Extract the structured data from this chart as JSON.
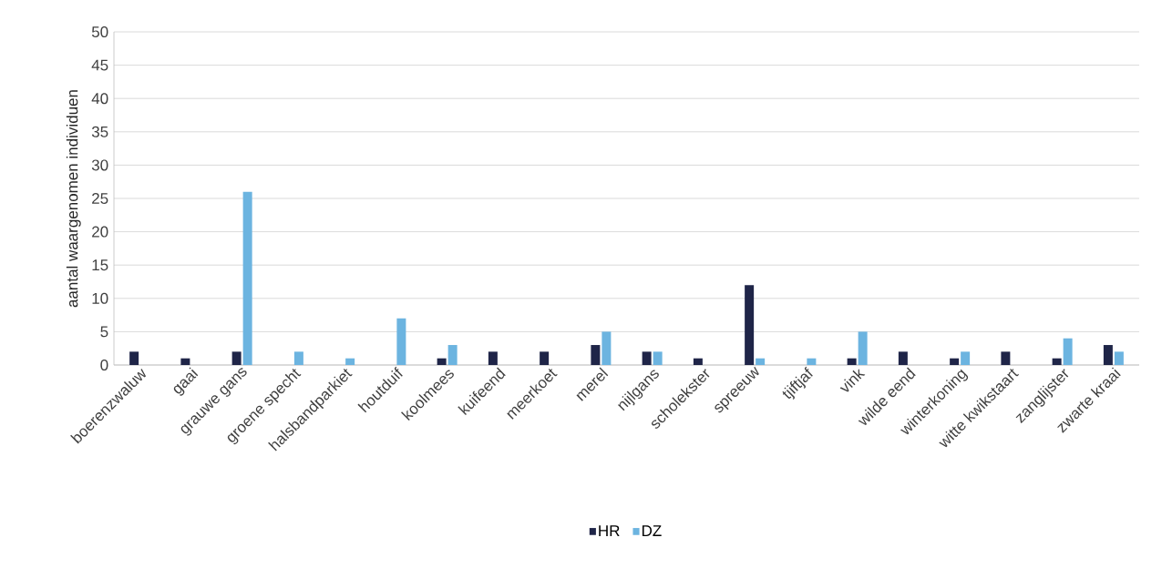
{
  "chart_data": {
    "type": "bar",
    "ylabel": "aantal waargenomen individuen",
    "categories": [
      "boerenzwaluw",
      "gaai",
      "grauwe gans",
      "groene specht",
      "halsbandparkiet",
      "houtduif",
      "koolmees",
      "kuifeend",
      "meerkoet",
      "merel",
      "nijlgans",
      "scholekster",
      "spreeuw",
      "tjiftjaf",
      "vink",
      "wilde eend",
      "winterkoning",
      "witte kwikstaart",
      "zanglijster",
      "zwarte kraai"
    ],
    "series": [
      {
        "name": "HR",
        "color": "#1f2548",
        "values": [
          2,
          1,
          2,
          null,
          null,
          null,
          1,
          2,
          2,
          3,
          2,
          1,
          12,
          null,
          1,
          2,
          1,
          2,
          1,
          3
        ]
      },
      {
        "name": "DZ",
        "color": "#6cb4e0",
        "values": [
          null,
          null,
          26,
          2,
          1,
          7,
          3,
          null,
          null,
          5,
          2,
          null,
          1,
          1,
          5,
          null,
          2,
          null,
          4,
          2
        ]
      }
    ],
    "ylim": [
      0,
      50
    ],
    "yticks": [
      0,
      5,
      10,
      15,
      20,
      25,
      30,
      35,
      40,
      45,
      50
    ],
    "grid": "y",
    "legend": "bottom"
  }
}
